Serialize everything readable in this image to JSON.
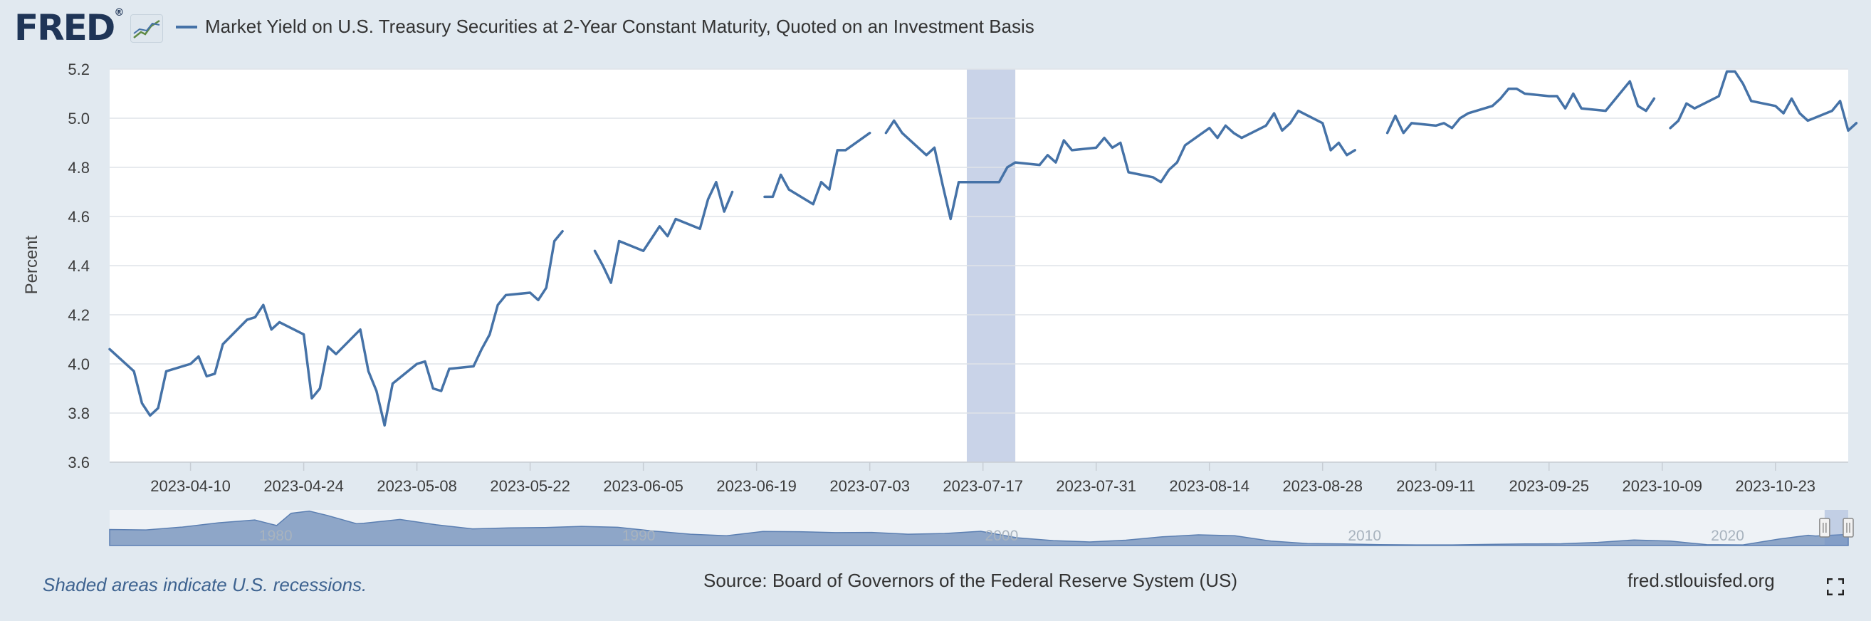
{
  "header": {
    "logo_text": "FRED",
    "logo_reg": "®",
    "series_title": "Market Yield on U.S. Treasury Securities at 2-Year Constant Maturity, Quoted on an Investment Basis"
  },
  "footer": {
    "recession_note": "Shaded areas indicate U.S. recessions.",
    "source": "Source: Board of Governors of the Federal Reserve System (US)",
    "site": "fred.stlouisfed.org"
  },
  "colors": {
    "line": "#4572a7",
    "shade": "#c9d3e8",
    "navigator_fill": "#8ea6c8",
    "background": "#e1e9f0"
  },
  "icons": {
    "logo_badge": "chart-icon",
    "fullscreen": "fullscreen-icon"
  },
  "chart_data": {
    "type": "line",
    "title": "Market Yield on U.S. Treasury Securities at 2-Year Constant Maturity, Quoted on an Investment Basis",
    "xlabel": "",
    "ylabel": "Percent",
    "ylim": [
      3.6,
      5.2
    ],
    "xlim": [
      "2023-03-31",
      "2023-11-01"
    ],
    "yticks": [
      "3.6",
      "3.8",
      "4.0",
      "4.2",
      "4.4",
      "4.6",
      "4.8",
      "5.0",
      "5.2"
    ],
    "xticks": [
      "2023-04-10",
      "2023-04-24",
      "2023-05-08",
      "2023-05-22",
      "2023-06-05",
      "2023-06-19",
      "2023-07-03",
      "2023-07-17",
      "2023-07-31",
      "2023-08-14",
      "2023-08-28",
      "2023-09-11",
      "2023-09-25",
      "2023-10-09",
      "2023-10-23"
    ],
    "grid": true,
    "shaded_periods": [
      [
        "2023-07-15",
        "2023-07-21"
      ]
    ],
    "series": [
      {
        "segments": [
          [
            [
              "2023-03-31",
              4.06
            ],
            [
              "2023-04-03",
              3.97
            ],
            [
              "2023-04-04",
              3.84
            ],
            [
              "2023-04-05",
              3.79
            ],
            [
              "2023-04-06",
              3.82
            ],
            [
              "2023-04-07",
              3.97
            ],
            [
              "2023-04-10",
              4.0
            ],
            [
              "2023-04-11",
              4.03
            ],
            [
              "2023-04-12",
              3.95
            ],
            [
              "2023-04-13",
              3.96
            ],
            [
              "2023-04-14",
              4.08
            ],
            [
              "2023-04-17",
              4.18
            ],
            [
              "2023-04-18",
              4.19
            ],
            [
              "2023-04-19",
              4.24
            ],
            [
              "2023-04-20",
              4.14
            ],
            [
              "2023-04-21",
              4.17
            ],
            [
              "2023-04-24",
              4.12
            ],
            [
              "2023-04-25",
              3.86
            ],
            [
              "2023-04-26",
              3.9
            ],
            [
              "2023-04-27",
              4.07
            ],
            [
              "2023-04-28",
              4.04
            ],
            [
              "2023-05-01",
              4.14
            ],
            [
              "2023-05-02",
              3.97
            ],
            [
              "2023-05-03",
              3.89
            ],
            [
              "2023-05-04",
              3.75
            ],
            [
              "2023-05-05",
              3.92
            ],
            [
              "2023-05-08",
              4.0
            ],
            [
              "2023-05-09",
              4.01
            ],
            [
              "2023-05-10",
              3.9
            ],
            [
              "2023-05-11",
              3.89
            ],
            [
              "2023-05-12",
              3.98
            ],
            [
              "2023-05-15",
              3.99
            ],
            [
              "2023-05-16",
              4.06
            ],
            [
              "2023-05-17",
              4.12
            ],
            [
              "2023-05-18",
              4.24
            ],
            [
              "2023-05-19",
              4.28
            ],
            [
              "2023-05-22",
              4.29
            ],
            [
              "2023-05-23",
              4.26
            ],
            [
              "2023-05-24",
              4.31
            ],
            [
              "2023-05-25",
              4.5
            ],
            [
              "2023-05-26",
              4.54
            ]
          ],
          [
            [
              "2023-05-30",
              4.46
            ],
            [
              "2023-05-31",
              4.4
            ],
            [
              "2023-06-01",
              4.33
            ],
            [
              "2023-06-02",
              4.5
            ],
            [
              "2023-06-05",
              4.46
            ],
            [
              "2023-06-06",
              4.51
            ],
            [
              "2023-06-07",
              4.56
            ],
            [
              "2023-06-08",
              4.52
            ],
            [
              "2023-06-09",
              4.59
            ],
            [
              "2023-06-12",
              4.55
            ],
            [
              "2023-06-13",
              4.67
            ],
            [
              "2023-06-14",
              4.74
            ],
            [
              "2023-06-15",
              4.62
            ],
            [
              "2023-06-16",
              4.7
            ]
          ],
          [
            [
              "2023-06-20",
              4.68
            ],
            [
              "2023-06-21",
              4.68
            ],
            [
              "2023-06-22",
              4.77
            ],
            [
              "2023-06-23",
              4.71
            ],
            [
              "2023-06-26",
              4.65
            ],
            [
              "2023-06-27",
              4.74
            ],
            [
              "2023-06-28",
              4.71
            ],
            [
              "2023-06-29",
              4.87
            ],
            [
              "2023-06-30",
              4.87
            ],
            [
              "2023-07-03",
              4.94
            ]
          ],
          [
            [
              "2023-07-05",
              4.94
            ],
            [
              "2023-07-06",
              4.99
            ],
            [
              "2023-07-07",
              4.94
            ],
            [
              "2023-07-10",
              4.85
            ],
            [
              "2023-07-11",
              4.88
            ],
            [
              "2023-07-12",
              4.73
            ],
            [
              "2023-07-13",
              4.59
            ],
            [
              "2023-07-14",
              4.74
            ],
            [
              "2023-07-17",
              4.74
            ],
            [
              "2023-07-18",
              4.74
            ],
            [
              "2023-07-19",
              4.74
            ],
            [
              "2023-07-20",
              4.8
            ],
            [
              "2023-07-21",
              4.82
            ],
            [
              "2023-07-24",
              4.81
            ],
            [
              "2023-07-25",
              4.85
            ],
            [
              "2023-07-26",
              4.82
            ],
            [
              "2023-07-27",
              4.91
            ],
            [
              "2023-07-28",
              4.87
            ],
            [
              "2023-07-31",
              4.88
            ],
            [
              "2023-08-01",
              4.92
            ],
            [
              "2023-08-02",
              4.88
            ],
            [
              "2023-08-03",
              4.9
            ],
            [
              "2023-08-04",
              4.78
            ],
            [
              "2023-08-07",
              4.76
            ],
            [
              "2023-08-08",
              4.74
            ],
            [
              "2023-08-09",
              4.79
            ],
            [
              "2023-08-10",
              4.82
            ],
            [
              "2023-08-11",
              4.89
            ],
            [
              "2023-08-14",
              4.96
            ],
            [
              "2023-08-15",
              4.92
            ],
            [
              "2023-08-16",
              4.97
            ],
            [
              "2023-08-17",
              4.94
            ],
            [
              "2023-08-18",
              4.92
            ],
            [
              "2023-08-21",
              4.97
            ],
            [
              "2023-08-22",
              5.02
            ],
            [
              "2023-08-23",
              4.95
            ],
            [
              "2023-08-24",
              4.98
            ],
            [
              "2023-08-25",
              5.03
            ],
            [
              "2023-08-28",
              4.98
            ],
            [
              "2023-08-29",
              4.87
            ],
            [
              "2023-08-30",
              4.9
            ],
            [
              "2023-08-31",
              4.85
            ],
            [
              "2023-09-01",
              4.87
            ]
          ],
          [
            [
              "2023-09-05",
              4.94
            ],
            [
              "2023-09-06",
              5.01
            ],
            [
              "2023-09-07",
              4.94
            ],
            [
              "2023-09-08",
              4.98
            ],
            [
              "2023-09-11",
              4.97
            ],
            [
              "2023-09-12",
              4.98
            ],
            [
              "2023-09-13",
              4.96
            ],
            [
              "2023-09-14",
              5.0
            ],
            [
              "2023-09-15",
              5.02
            ],
            [
              "2023-09-18",
              5.05
            ],
            [
              "2023-09-19",
              5.08
            ],
            [
              "2023-09-20",
              5.12
            ],
            [
              "2023-09-21",
              5.12
            ],
            [
              "2023-09-22",
              5.1
            ],
            [
              "2023-09-25",
              5.09
            ],
            [
              "2023-09-26",
              5.09
            ],
            [
              "2023-09-27",
              5.04
            ],
            [
              "2023-09-28",
              5.1
            ],
            [
              "2023-09-29",
              5.04
            ],
            [
              "2023-10-02",
              5.03
            ],
            [
              "2023-10-05",
              5.15
            ],
            [
              "2023-10-06",
              5.05
            ],
            [
              "2023-10-07",
              5.03
            ],
            [
              "2023-10-08",
              5.08
            ]
          ],
          [
            [
              "2023-10-10",
              4.96
            ],
            [
              "2023-10-11",
              4.99
            ],
            [
              "2023-10-12",
              5.06
            ],
            [
              "2023-10-13",
              5.04
            ],
            [
              "2023-10-16",
              5.09
            ],
            [
              "2023-10-17",
              5.19
            ],
            [
              "2023-10-18",
              5.19
            ],
            [
              "2023-10-19",
              5.14
            ],
            [
              "2023-10-20",
              5.07
            ],
            [
              "2023-10-23",
              5.05
            ],
            [
              "2023-10-24",
              5.02
            ],
            [
              "2023-10-25",
              5.08
            ],
            [
              "2023-10-26",
              5.02
            ],
            [
              "2023-10-27",
              4.99
            ],
            [
              "2023-10-30",
              5.03
            ],
            [
              "2023-10-31",
              5.07
            ],
            [
              "2023-11-01",
              4.95
            ],
            [
              "2023-11-02",
              4.98
            ]
          ]
        ]
      }
    ],
    "navigator": {
      "tick_labels": [
        "1980",
        "1990",
        "2000",
        "2010",
        "2020"
      ],
      "tick_years": [
        1980,
        1990,
        2000,
        2010,
        2020
      ],
      "year_range": [
        1976,
        2023.9
      ],
      "selection_start": 2023.25,
      "overview": [
        [
          1976,
          7.2
        ],
        [
          1977,
          7.0
        ],
        [
          1978,
          8.3
        ],
        [
          1979,
          10.2
        ],
        [
          1980,
          11.5
        ],
        [
          1980.6,
          9.0
        ],
        [
          1981,
          14.5
        ],
        [
          1981.5,
          15.5
        ],
        [
          1982,
          13.5
        ],
        [
          1982.8,
          9.8
        ],
        [
          1983,
          10.0
        ],
        [
          1984,
          11.7
        ],
        [
          1985,
          9.3
        ],
        [
          1986,
          7.5
        ],
        [
          1987,
          7.9
        ],
        [
          1988,
          8.1
        ],
        [
          1989,
          8.6
        ],
        [
          1990,
          8.2
        ],
        [
          1991,
          6.5
        ],
        [
          1992,
          5.1
        ],
        [
          1993,
          4.4
        ],
        [
          1994,
          6.3
        ],
        [
          1995,
          6.2
        ],
        [
          1996,
          5.8
        ],
        [
          1997,
          5.9
        ],
        [
          1998,
          5.1
        ],
        [
          1999,
          5.4
        ],
        [
          2000,
          6.4
        ],
        [
          2001,
          3.5
        ],
        [
          2002,
          2.2
        ],
        [
          2003,
          1.6
        ],
        [
          2004,
          2.4
        ],
        [
          2005,
          3.9
        ],
        [
          2006,
          4.8
        ],
        [
          2007,
          4.4
        ],
        [
          2008,
          2.0
        ],
        [
          2009,
          0.9
        ],
        [
          2010,
          0.7
        ],
        [
          2011,
          0.4
        ],
        [
          2012,
          0.3
        ],
        [
          2013,
          0.3
        ],
        [
          2014,
          0.5
        ],
        [
          2015,
          0.7
        ],
        [
          2016,
          0.8
        ],
        [
          2017,
          1.4
        ],
        [
          2018,
          2.5
        ],
        [
          2019,
          2.0
        ],
        [
          2020,
          0.4
        ],
        [
          2021,
          0.3
        ],
        [
          2022,
          2.9
        ],
        [
          2022.8,
          4.6
        ],
        [
          2023,
          4.3
        ],
        [
          2023.9,
          5.0
        ]
      ]
    }
  }
}
